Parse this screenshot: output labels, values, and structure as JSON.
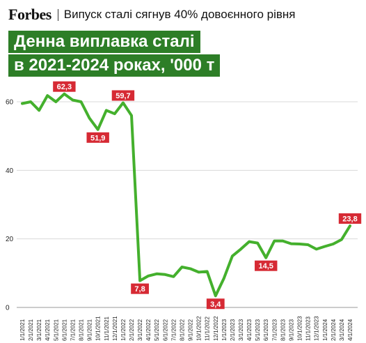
{
  "header": {
    "brand": "Forbes",
    "subtitle": "Випуск сталі сягнув 40% довоєнного рівня"
  },
  "title": {
    "line1": "Денна виплавка сталі",
    "line2": "в 2021-2024 роках, '000 т"
  },
  "colors": {
    "line": "#44b02d",
    "title_bg": "#2d7e27",
    "label_bg": "#d62a34",
    "grid": "#d9d9d9"
  },
  "chart_data": {
    "type": "line",
    "title": "Денна виплавка сталі в 2021-2024 роках, '000 т",
    "xlabel": "",
    "ylabel": "",
    "ylim": [
      0,
      65
    ],
    "yticks": [
      0,
      20,
      40,
      60
    ],
    "grid": true,
    "legend": "none",
    "categories": [
      "1/1/2021",
      "2/1/2021",
      "3/1/2021",
      "4/1/2021",
      "5/1/2021",
      "6/1/2021",
      "7/1/2021",
      "8/1/2021",
      "9/1/2021",
      "10/1/2021",
      "11/1/2021",
      "12/1/2021",
      "1/1/2022",
      "2/1/2022",
      "3/1/2022",
      "4/1/2022",
      "5/1/2022",
      "6/1/2022",
      "7/1/2022",
      "8/1/2022",
      "9/1/2022",
      "10/1/2022",
      "11/1/2022",
      "12/1/2022",
      "1/1/2023",
      "2/1/2023",
      "3/1/2023",
      "4/1/2023",
      "5/1/2023",
      "6/1/2023",
      "7/1/2023",
      "8/1/2023",
      "9/1/2023",
      "10/1/2023",
      "11/1/2023",
      "12/1/2023",
      "1/1/2024",
      "2/1/2024",
      "3/1/2024",
      "4/1/2024"
    ],
    "values": [
      59.5,
      60,
      57.5,
      61.8,
      60,
      62.3,
      60.5,
      60,
      55.2,
      51.9,
      57.5,
      56.5,
      59.7,
      56,
      7.8,
      9.2,
      9.8,
      9.6,
      9,
      11.8,
      11.3,
      10.3,
      10.5,
      3.4,
      8.5,
      15,
      17,
      19.2,
      18.8,
      14.5,
      19.4,
      19.4,
      18.6,
      18.5,
      18.3,
      17,
      17.8,
      18.5,
      19.8,
      23.8
    ],
    "data_labels": [
      {
        "index": 5,
        "text": "62,3"
      },
      {
        "index": 9,
        "text": "51,9"
      },
      {
        "index": 12,
        "text": "59,7"
      },
      {
        "index": 14,
        "text": "7,8"
      },
      {
        "index": 23,
        "text": "3,4"
      },
      {
        "index": 29,
        "text": "14,5"
      },
      {
        "index": 39,
        "text": "23,8"
      }
    ]
  }
}
